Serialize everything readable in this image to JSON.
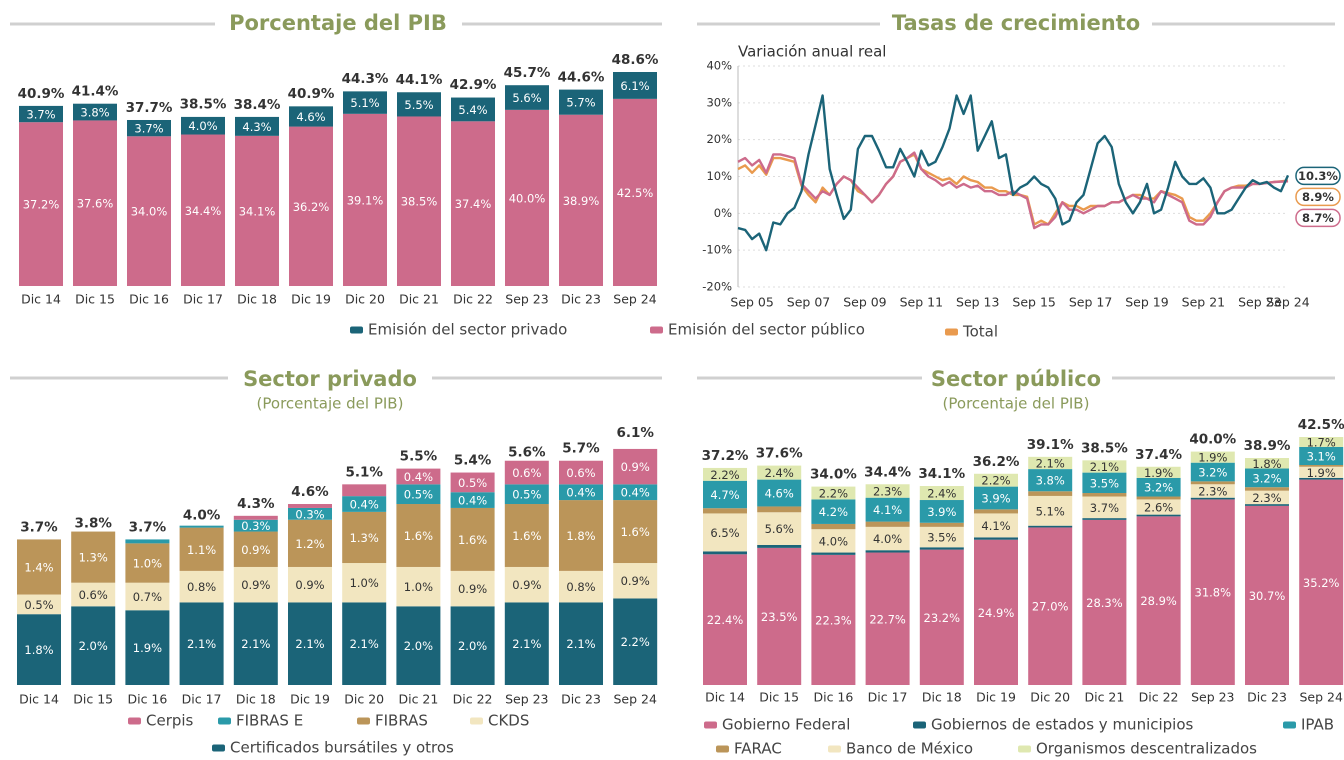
{
  "chart_data": [
    {
      "type": "bar",
      "stacked": true,
      "title": "Porcentaje del PIB",
      "categories": [
        "Dic 14",
        "Dic 15",
        "Dic 16",
        "Dic 17",
        "Dic 18",
        "Dic 19",
        "Dic 20",
        "Dic 21",
        "Dic 22",
        "Sep 23",
        "Dic 23",
        "Sep 24"
      ],
      "series": [
        {
          "color": "#cd6b8b",
          "values": [
            37.2,
            37.6,
            34.0,
            34.4,
            34.1,
            36.2,
            39.1,
            38.5,
            37.4,
            40.0,
            38.9,
            42.5
          ],
          "value_labels": [
            "37.2%",
            "37.6%",
            "34.0%",
            "34.4%",
            "34.1%",
            "36.2%",
            "39.1%",
            "38.5%",
            "37.4%",
            "40.0%",
            "38.9%",
            "42.5%"
          ]
        },
        {
          "color": "#1b6478",
          "values": [
            3.7,
            3.8,
            3.7,
            4.0,
            4.3,
            4.6,
            5.1,
            5.5,
            5.4,
            5.6,
            5.7,
            6.1
          ],
          "value_labels": [
            "3.7%",
            "3.8%",
            "3.7%",
            "4.0%",
            "4.3%",
            "4.6%",
            "5.1%",
            "5.5%",
            "5.4%",
            "5.6%",
            "5.7%",
            "6.1%"
          ]
        }
      ],
      "totals": [
        40.9,
        41.4,
        37.7,
        38.5,
        38.4,
        40.9,
        44.3,
        44.1,
        42.9,
        45.7,
        44.6,
        48.6
      ],
      "total_labels": [
        "40.9%",
        "41.4%",
        "37.7%",
        "38.5%",
        "38.4%",
        "40.9%",
        "44.3%",
        "44.1%",
        "42.9%",
        "45.7%",
        "44.6%",
        "48.6%"
      ]
    },
    {
      "type": "line",
      "title": "Tasas de crecimiento",
      "subtitle": "Variación anual real",
      "categories": [
        null,
        null,
        "Sep 05",
        null,
        null,
        null,
        null,
        null,
        null,
        null,
        "Sep 07",
        null,
        null,
        null,
        null,
        null,
        null,
        null,
        "Sep 09",
        null,
        null,
        null,
        null,
        null,
        null,
        null,
        "Sep 11",
        null,
        null,
        null,
        null,
        null,
        null,
        null,
        "Sep 13",
        null,
        null,
        null,
        null,
        null,
        null,
        null,
        "Sep 15",
        null,
        null,
        null,
        null,
        null,
        null,
        null,
        "Sep 17",
        null,
        null,
        null,
        null,
        null,
        null,
        null,
        "Sep 19",
        null,
        null,
        null,
        null,
        null,
        null,
        null,
        "Sep 21",
        null,
        null,
        null,
        null,
        null,
        null,
        null,
        "Sep 23",
        null,
        null,
        null,
        "Sep 24"
      ],
      "ylim": [
        -20,
        40
      ],
      "yticks": [
        {
          "value": -20,
          "label": "-20%"
        },
        {
          "value": -10,
          "label": "-10%"
        },
        {
          "value": 0,
          "label": "0%"
        },
        {
          "value": 10,
          "label": "10%"
        },
        {
          "value": 20,
          "label": "20%"
        },
        {
          "value": 30,
          "label": "30%"
        },
        {
          "value": 40,
          "label": "40%"
        }
      ],
      "grid": true,
      "series": [
        {
          "name": "Emisión del sector privado",
          "color": "#1b6478",
          "end_label": "10.3%",
          "values": [
            -4,
            -4.5,
            -7,
            -5.5,
            -10,
            -2.5,
            -3,
            0,
            1.5,
            6,
            16,
            24,
            32,
            12,
            5,
            -1.5,
            1,
            17.5,
            21,
            21,
            17,
            12.5,
            12.5,
            17.5,
            14,
            10,
            17,
            13,
            14,
            18,
            23,
            32,
            27,
            32,
            17,
            21,
            25,
            15,
            16,
            5,
            7,
            8,
            10,
            8,
            7,
            4,
            -3,
            -2,
            3,
            5,
            12,
            19,
            21,
            18,
            8,
            3,
            0,
            3,
            8,
            0,
            1,
            7,
            14,
            10,
            8,
            8,
            9.5,
            7,
            0,
            0,
            1,
            4,
            7,
            9,
            8,
            8.5,
            7,
            6,
            10.3
          ]
        },
        {
          "name": "Emisión del sector público",
          "color": "#cd6b8b",
          "end_label": "8.7%",
          "values": [
            14,
            15,
            13,
            14.5,
            11,
            16,
            16,
            15.5,
            15,
            8,
            6,
            4,
            6,
            5,
            8,
            10,
            9,
            7,
            5,
            3,
            5,
            8,
            10,
            14,
            15,
            16.5,
            12,
            10,
            9,
            7.5,
            8.5,
            7,
            8,
            7,
            7.5,
            6,
            6,
            5,
            5,
            6,
            5,
            4,
            -4,
            -3,
            -3,
            -1,
            3,
            1,
            1,
            0,
            1,
            2,
            2,
            3,
            3,
            4,
            5,
            4,
            4,
            3,
            6,
            5,
            4,
            3,
            -2,
            -3,
            -3,
            -1,
            3,
            6,
            7,
            7,
            7,
            8,
            8,
            8.2,
            8.5,
            8.6,
            8.7
          ]
        },
        {
          "name": "Total",
          "color": "#e99a4e",
          "end_label": "8.9%",
          "values": [
            12,
            13,
            11,
            13,
            10.5,
            15,
            15,
            14.5,
            14,
            7.5,
            5,
            3,
            7,
            5,
            8,
            10,
            9,
            6,
            5,
            3,
            5,
            8,
            10,
            14,
            15,
            16,
            12,
            11,
            10,
            9,
            9.5,
            8,
            10,
            9,
            8.5,
            7,
            7,
            6,
            6,
            5,
            5,
            4.5,
            -3,
            -2,
            -3,
            0,
            3,
            2,
            2,
            1,
            2,
            2,
            2,
            3,
            3,
            4,
            5,
            5,
            4,
            4,
            6,
            5.5,
            5,
            4,
            -1,
            -2,
            -2,
            0,
            3,
            6,
            7,
            7.5,
            7.5,
            8,
            8,
            8.3,
            8.5,
            8.7,
            8.9
          ]
        }
      ]
    },
    {
      "type": "bar",
      "stacked": true,
      "title": "Sector privado",
      "subtitle": "(Porcentaje del PIB)",
      "categories": [
        "Dic 14",
        "Dic 15",
        "Dic 16",
        "Dic 17",
        "Dic 18",
        "Dic 19",
        "Dic 20",
        "Dic 21",
        "Dic 22",
        "Sep 23",
        "Dic 23",
        "Sep 24"
      ],
      "series": [
        {
          "name": "Certificados bursátiles y otros",
          "color": "#1b6478",
          "values": [
            1.8,
            2.0,
            1.9,
            2.1,
            2.1,
            2.1,
            2.1,
            2.0,
            2.0,
            2.1,
            2.1,
            2.2
          ],
          "value_labels": [
            "1.8%",
            "2.0%",
            "1.9%",
            "2.1%",
            "2.1%",
            "2.1%",
            "2.1%",
            "2.0%",
            "2.0%",
            "2.1%",
            "2.1%",
            "2.2%"
          ]
        },
        {
          "name": "CKDS",
          "color": "#f2e6c0",
          "values": [
            0.5,
            0.6,
            0.7,
            0.8,
            0.9,
            0.9,
            1.0,
            1.0,
            0.9,
            0.9,
            0.8,
            0.9
          ],
          "value_labels": [
            "0.5%",
            "0.6%",
            "0.7%",
            "0.8%",
            "0.9%",
            "0.9%",
            "1.0%",
            "1.0%",
            "0.9%",
            "0.9%",
            "0.8%",
            "0.9%"
          ]
        },
        {
          "name": "FIBRAS",
          "color": "#bb9559",
          "values": [
            1.4,
            1.3,
            1.0,
            1.1,
            0.9,
            1.2,
            1.3,
            1.6,
            1.6,
            1.6,
            1.8,
            1.6
          ],
          "value_labels": [
            "1.4%",
            "1.3%",
            "1.0%",
            "1.1%",
            "0.9%",
            "1.2%",
            "1.3%",
            "1.6%",
            "1.6%",
            "1.6%",
            "1.8%",
            "1.6%"
          ]
        },
        {
          "name": "FIBRAS E",
          "color": "#2a9aa9",
          "values": [
            0,
            0,
            0.1,
            0.05,
            0.3,
            0.3,
            0.4,
            0.5,
            0.4,
            0.5,
            0.4,
            0.4
          ],
          "value_labels": [
            null,
            null,
            null,
            null,
            "0.3%",
            "0.3%",
            "0.4%",
            "0.5%",
            "0.4%",
            "0.5%",
            "0.4%",
            "0.4%"
          ]
        },
        {
          "name": "Cerpis",
          "color": "#cd6b8b",
          "values": [
            0,
            0,
            0,
            0,
            0.1,
            0.1,
            0.3,
            0.4,
            0.5,
            0.6,
            0.6,
            0.9
          ],
          "value_labels": [
            null,
            null,
            null,
            null,
            null,
            null,
            null,
            "0.4%",
            "0.5%",
            "0.6%",
            "0.6%",
            "0.9%"
          ]
        }
      ],
      "totals": [
        3.7,
        3.8,
        3.7,
        4.0,
        4.3,
        4.6,
        5.1,
        5.5,
        5.4,
        5.6,
        5.7,
        6.1
      ],
      "total_labels": [
        "3.7%",
        "3.8%",
        "3.7%",
        "4.0%",
        "4.3%",
        "4.6%",
        "5.1%",
        "5.5%",
        "5.4%",
        "5.6%",
        "5.7%",
        "6.1%"
      ]
    },
    {
      "type": "bar",
      "stacked": true,
      "title": "Sector público",
      "subtitle": "(Porcentaje del PIB)",
      "categories": [
        "Dic 14",
        "Dic 15",
        "Dic 16",
        "Dic 17",
        "Dic 18",
        "Dic 19",
        "Dic 20",
        "Dic 21",
        "Dic 22",
        "Sep 23",
        "Dic 23",
        "Sep 24"
      ],
      "series": [
        {
          "name": "Gobierno Federal",
          "color": "#cd6b8b",
          "values": [
            22.4,
            23.5,
            22.3,
            22.7,
            23.2,
            24.9,
            27.0,
            28.3,
            28.9,
            31.8,
            30.7,
            35.2
          ],
          "value_labels": [
            "22.4%",
            "23.5%",
            "22.3%",
            "22.7%",
            "23.2%",
            "24.9%",
            "27.0%",
            "28.3%",
            "28.9%",
            "31.8%",
            "30.7%",
            "35.2%"
          ]
        },
        {
          "name": "Gobiernos de estados y municipios",
          "color": "#1b6478",
          "values": [
            0.5,
            0.5,
            0.4,
            0.4,
            0.4,
            0.4,
            0.3,
            0.3,
            0.3,
            0.3,
            0.3,
            0.3
          ]
        },
        {
          "name": "Banco de México",
          "color": "#f2e6c0",
          "values": [
            6.5,
            5.6,
            4.0,
            4.0,
            3.5,
            4.1,
            5.1,
            3.7,
            2.6,
            2.3,
            2.3,
            1.9
          ],
          "value_labels": [
            "6.5%",
            "5.6%",
            "4.0%",
            "4.0%",
            "3.5%",
            "4.1%",
            "5.1%",
            "3.7%",
            "2.6%",
            "2.3%",
            "2.3%",
            "1.9%"
          ]
        },
        {
          "name": "FARAC",
          "color": "#bb9559",
          "values": [
            0.9,
            1.0,
            0.9,
            0.9,
            0.7,
            0.7,
            0.8,
            0.6,
            0.5,
            0.5,
            0.6,
            0.3
          ]
        },
        {
          "name": "IPAB",
          "color": "#2a9aa9",
          "values": [
            4.7,
            4.6,
            4.2,
            4.1,
            3.9,
            3.9,
            3.8,
            3.5,
            3.2,
            3.2,
            3.2,
            3.1
          ],
          "value_labels": [
            "4.7%",
            "4.6%",
            "4.2%",
            "4.1%",
            "3.9%",
            "3.9%",
            "3.8%",
            "3.5%",
            "3.2%",
            "3.2%",
            "3.2%",
            "3.1%"
          ]
        },
        {
          "name": "Organismos descentralizados",
          "color": "#dfe8b0",
          "values": [
            2.2,
            2.4,
            2.2,
            2.3,
            2.4,
            2.2,
            2.1,
            2.1,
            1.9,
            1.9,
            1.8,
            1.7
          ],
          "value_labels": [
            "2.2%",
            "2.4%",
            "2.2%",
            "2.3%",
            "2.4%",
            "2.2%",
            "2.1%",
            "2.1%",
            "1.9%",
            "1.9%",
            "1.8%",
            "1.7%"
          ]
        }
      ],
      "totals": [
        37.2,
        37.6,
        34.0,
        34.4,
        34.1,
        36.2,
        39.1,
        38.5,
        37.4,
        40.0,
        38.9,
        42.5
      ],
      "total_labels": [
        "37.2%",
        "37.6%",
        "34.0%",
        "34.4%",
        "34.1%",
        "36.2%",
        "39.1%",
        "38.5%",
        "37.4%",
        "40.0%",
        "38.9%",
        "42.5%"
      ]
    }
  ]
}
